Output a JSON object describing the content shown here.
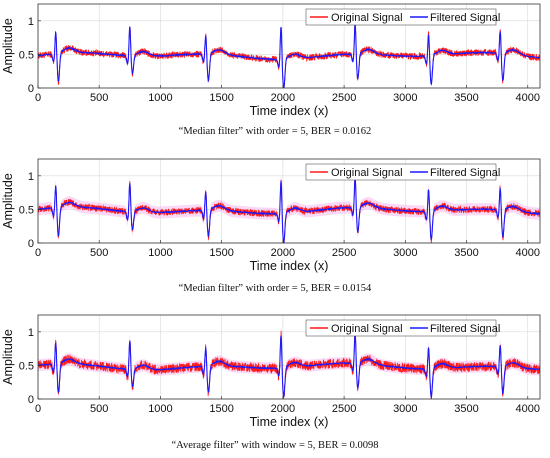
{
  "colors": {
    "original": "#ff1a1a",
    "filtered": "#1a1aff",
    "halo": "#f5b8f0",
    "grid": "#d9d9d9"
  },
  "chart_data": [
    {
      "type": "line",
      "xlabel": "Time index (x)",
      "ylabel": "Amplitude",
      "xlim": [
        0,
        4100
      ],
      "ylim": [
        0,
        1.25
      ],
      "xticks": [
        "0",
        "500",
        "1000",
        "1500",
        "2000",
        "2500",
        "3000",
        "3500",
        "4000"
      ],
      "yticks": [
        "0",
        "0.5",
        "1"
      ],
      "grid": true,
      "legend_position": "top-right",
      "series": [
        {
          "name": "Original Signal"
        },
        {
          "name": "Filtered Signal"
        }
      ],
      "beats": [
        {
          "x": 145,
          "peak": 0.85,
          "trough": 0.02
        },
        {
          "x": 750,
          "peak": 0.95,
          "trough": 0.2
        },
        {
          "x": 1370,
          "peak": 0.8,
          "trough": 0.05
        },
        {
          "x": 1985,
          "peak": 1.02,
          "trough": 0.0
        },
        {
          "x": 2590,
          "peak": 0.98,
          "trough": 0.08
        },
        {
          "x": 3190,
          "peak": 0.85,
          "trough": 0.02
        },
        {
          "x": 3775,
          "peak": 0.85,
          "trough": 0.04
        }
      ],
      "halo": false,
      "caption": "“Median filter” with order = 5, BER = 0.0162"
    },
    {
      "type": "line",
      "xlabel": "Time index (x)",
      "ylabel": "Amplitude",
      "xlim": [
        0,
        4100
      ],
      "ylim": [
        0,
        1.25
      ],
      "xticks": [
        "0",
        "500",
        "1000",
        "1500",
        "2000",
        "2500",
        "3000",
        "3500",
        "4000"
      ],
      "yticks": [
        "0",
        "0.5",
        "1"
      ],
      "grid": true,
      "legend_position": "top-right",
      "series": [
        {
          "name": "Original Signal"
        },
        {
          "name": "Filtered Signal"
        }
      ],
      "beats": [
        {
          "x": 145,
          "peak": 0.85,
          "trough": 0.02
        },
        {
          "x": 750,
          "peak": 0.95,
          "trough": 0.2
        },
        {
          "x": 1370,
          "peak": 0.8,
          "trough": 0.05
        },
        {
          "x": 1985,
          "peak": 1.02,
          "trough": 0.0
        },
        {
          "x": 2590,
          "peak": 0.98,
          "trough": 0.08
        },
        {
          "x": 3190,
          "peak": 0.85,
          "trough": 0.02
        },
        {
          "x": 3775,
          "peak": 0.85,
          "trough": 0.04
        }
      ],
      "halo": true,
      "caption": "“Median filter” with order = 5, BER = 0.0154"
    },
    {
      "type": "line",
      "xlabel": "Time index (x)",
      "ylabel": "Amplitude",
      "xlim": [
        0,
        4100
      ],
      "ylim": [
        0,
        1.25
      ],
      "xticks": [
        "0",
        "500",
        "1000",
        "1500",
        "2000",
        "2500",
        "3000",
        "3500",
        "4000"
      ],
      "yticks": [
        "0",
        "0.5",
        "1"
      ],
      "grid": true,
      "legend_position": "top-right",
      "series": [
        {
          "name": "Original Signal"
        },
        {
          "name": "Filtered Signal"
        }
      ],
      "beats": [
        {
          "x": 145,
          "peak": 0.85,
          "trough": 0.02
        },
        {
          "x": 750,
          "peak": 0.95,
          "trough": 0.2
        },
        {
          "x": 1370,
          "peak": 0.8,
          "trough": 0.05
        },
        {
          "x": 1985,
          "peak": 1.02,
          "trough": 0.0
        },
        {
          "x": 2590,
          "peak": 0.98,
          "trough": 0.08
        },
        {
          "x": 3190,
          "peak": 0.85,
          "trough": 0.02
        },
        {
          "x": 3775,
          "peak": 0.85,
          "trough": 0.04
        }
      ],
      "halo": true,
      "caption": "“Average filter” with window = 5, BER = 0.0098"
    }
  ]
}
